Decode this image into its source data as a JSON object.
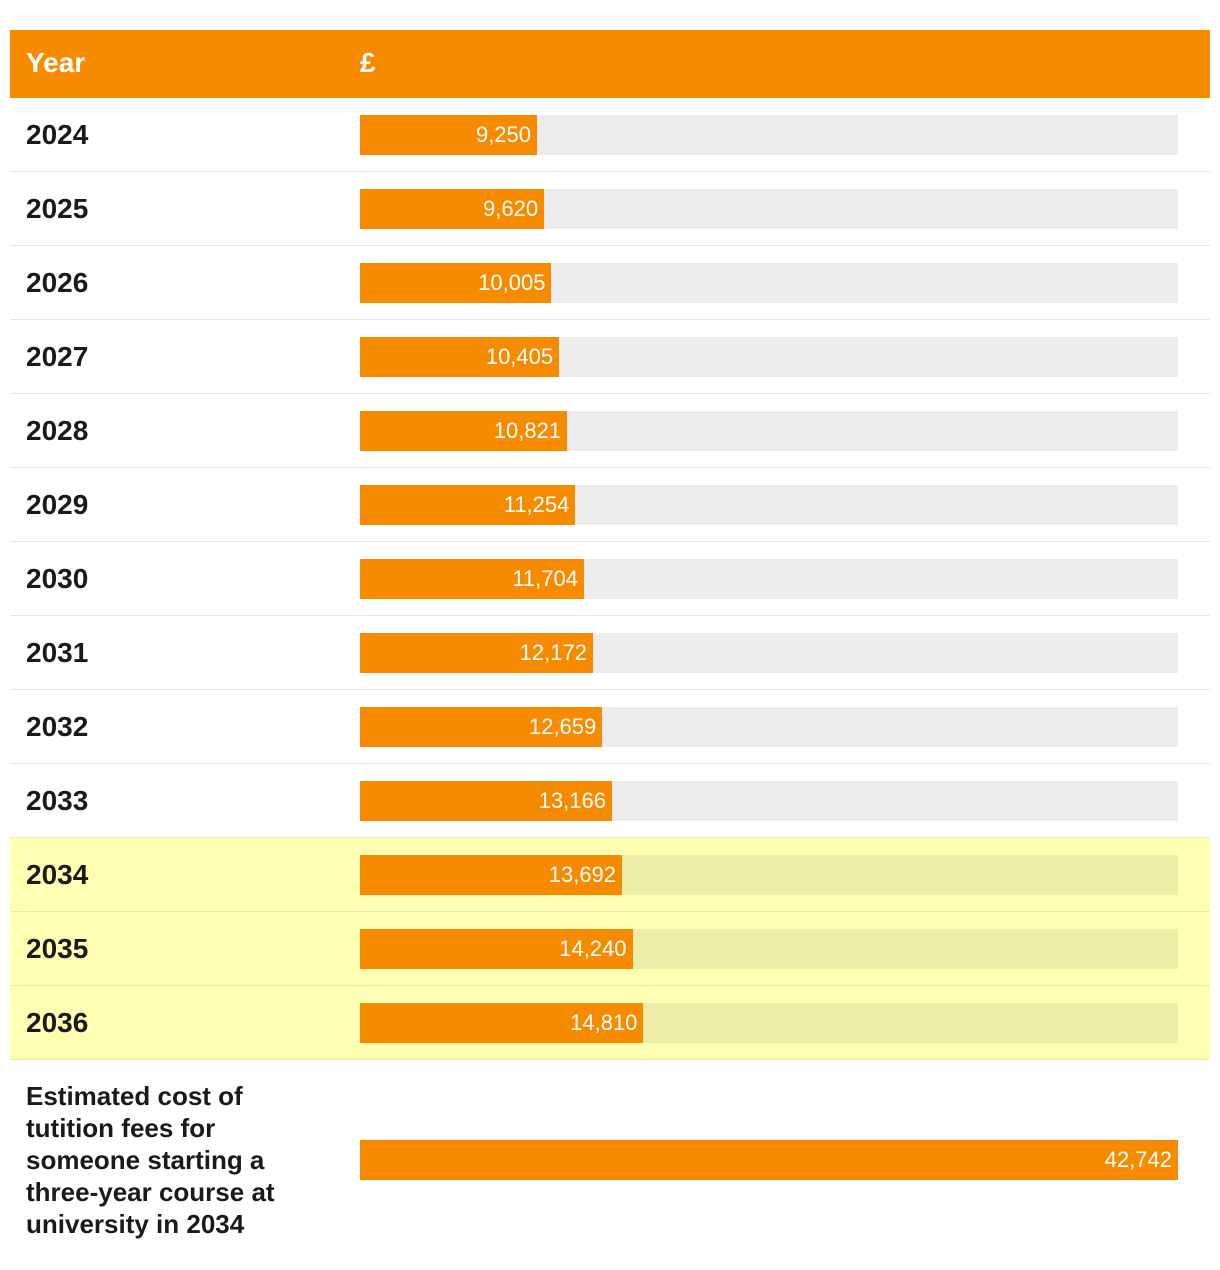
{
  "chart_data": {
    "type": "bar",
    "orientation": "horizontal",
    "header": {
      "category_label": "Year",
      "value_label": "£"
    },
    "categories": [
      "2024",
      "2025",
      "2026",
      "2027",
      "2028",
      "2029",
      "2030",
      "2031",
      "2032",
      "2033",
      "2034",
      "2035",
      "2036"
    ],
    "values": [
      9250,
      9620,
      10005,
      10405,
      10821,
      11254,
      11704,
      12172,
      12659,
      13166,
      13692,
      14240,
      14810
    ],
    "value_labels": [
      "9,250",
      "9,620",
      "10,005",
      "10,405",
      "10,821",
      "11,254",
      "11,704",
      "12,172",
      "12,659",
      "13,166",
      "13,692",
      "14,240",
      "14,810"
    ],
    "highlighted_categories": [
      "2034",
      "2035",
      "2036"
    ],
    "total": {
      "label": "Estimated cost of tutition fees for someone starting a three-year course at university in 2034",
      "value": 42742,
      "value_label": "42,742"
    },
    "xlim": [
      0,
      42742
    ]
  },
  "colors": {
    "bar": "#f78b00",
    "track": "#ececec",
    "highlight_row": "#ffffb3",
    "highlight_track": "#eeeda8"
  }
}
